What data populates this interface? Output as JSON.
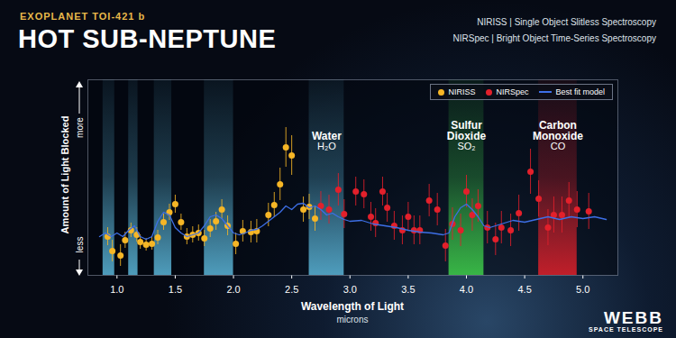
{
  "chart_data": {
    "type": "scatter",
    "subtitle": "EXOPLANET TOI-421 b",
    "title": "HOT SUB-NEPTUNE",
    "instruments": [
      "NIRISS | Single Object Slitless Spectroscopy",
      "NIRSpec | Bright Object Time-Series Spectroscopy"
    ],
    "x_label": "Wavelength of Light",
    "x_unit": "microns",
    "y_label": "Amount of Light Blocked",
    "y_top": "more",
    "y_bottom": "less",
    "xlim": [
      0.75,
      5.3
    ],
    "xticks": [
      {
        "value": 1,
        "label": "1.0"
      },
      {
        "value": 1.5,
        "label": "1.5"
      },
      {
        "value": 2,
        "label": "2.0"
      },
      {
        "value": 2.5,
        "label": "2.5"
      },
      {
        "value": 3,
        "label": "3.0"
      },
      {
        "value": 3.5,
        "label": "3.5"
      },
      {
        "value": 4,
        "label": "4.0"
      },
      {
        "value": 4.5,
        "label": "4.5"
      },
      {
        "value": 5,
        "label": "5.0"
      }
    ],
    "ylim": [
      0,
      217
    ],
    "tick_labels": "x",
    "legend": "top-right",
    "series": [
      {
        "name": "NIRISS",
        "color": "#f6b626",
        "type": "scatter",
        "marker": "circle",
        "x": [
          0.92,
          0.96,
          1.03,
          1.07,
          1.12,
          1.17,
          1.2,
          1.25,
          1.3,
          1.35,
          1.4,
          1.45,
          1.5,
          1.55,
          1.6,
          1.65,
          1.7,
          1.75,
          1.8,
          1.85,
          1.9,
          1.95,
          2.02,
          2.08,
          2.15,
          2.2,
          2.3,
          2.35,
          2.4,
          2.45,
          2.5,
          2.6,
          2.65,
          2.7
        ],
        "values": [
          43,
          27,
          22,
          39,
          50,
          45,
          37,
          34,
          35,
          42,
          59,
          70,
          79,
          59,
          43,
          45,
          47,
          41,
          52,
          60,
          73,
          55,
          35,
          49,
          48,
          49,
          67,
          78,
          101,
          142,
          133,
          73,
          76,
          63
        ],
        "errors": [
          10,
          12,
          12,
          9,
          8,
          8,
          8,
          7,
          7,
          8,
          9,
          9,
          10,
          9,
          9,
          9,
          9,
          9,
          10,
          10,
          11,
          11,
          12,
          12,
          12,
          13,
          13,
          14,
          18,
          22,
          22,
          14,
          14,
          14
        ]
      },
      {
        "name": "NIRSpec",
        "color": "#e3202b",
        "type": "scatter",
        "marker": "circle",
        "x": [
          2.75,
          2.82,
          2.9,
          2.95,
          3.05,
          3.12,
          3.18,
          3.22,
          3.28,
          3.32,
          3.38,
          3.45,
          3.5,
          3.55,
          3.6,
          3.68,
          3.75,
          3.82,
          3.88,
          3.95,
          4.0,
          4.05,
          4.1,
          4.18,
          4.25,
          4.3,
          4.38,
          4.45,
          4.55,
          4.62,
          4.7,
          4.75,
          4.82,
          4.88,
          4.95,
          5.05
        ],
        "values": [
          77,
          73,
          95,
          68,
          93,
          90,
          65,
          58,
          93,
          75,
          55,
          50,
          65,
          50,
          50,
          83,
          73,
          33,
          57,
          50,
          93,
          67,
          77,
          53,
          40,
          53,
          50,
          69,
          115,
          85,
          53,
          67,
          67,
          83,
          73,
          71
        ],
        "errors": [
          16,
          16,
          18,
          16,
          16,
          16,
          16,
          16,
          16,
          16,
          16,
          16,
          16,
          16,
          16,
          18,
          18,
          18,
          18,
          18,
          18,
          18,
          18,
          18,
          18,
          18,
          18,
          20,
          25,
          20,
          20,
          20,
          20,
          20,
          20,
          20
        ]
      },
      {
        "name": "Best fit model",
        "color": "#3d6fe6",
        "type": "line",
        "line_style": "solid",
        "x": [
          0.85,
          0.9,
          0.95,
          1,
          1.05,
          1.1,
          1.15,
          1.2,
          1.25,
          1.3,
          1.35,
          1.4,
          1.45,
          1.5,
          1.55,
          1.6,
          1.65,
          1.7,
          1.75,
          1.8,
          1.85,
          1.9,
          1.95,
          2,
          2.05,
          2.1,
          2.15,
          2.2,
          2.25,
          2.3,
          2.35,
          2.4,
          2.45,
          2.5,
          2.55,
          2.6,
          2.65,
          2.7,
          2.75,
          2.8,
          2.85,
          2.9,
          2.95,
          3,
          3.1,
          3.2,
          3.3,
          3.4,
          3.5,
          3.6,
          3.7,
          3.8,
          3.85,
          3.9,
          3.95,
          4.0,
          4.05,
          4.1,
          4.15,
          4.2,
          4.3,
          4.4,
          4.5,
          4.6,
          4.7,
          4.8,
          4.9,
          5.0,
          5.1,
          5.2
        ],
        "values": [
          43,
          47,
          43,
          47,
          43,
          50,
          55,
          43,
          40,
          43,
          60,
          70,
          67,
          53,
          47,
          43,
          45,
          47,
          55,
          65,
          67,
          63,
          55,
          47,
          45,
          47,
          50,
          51,
          55,
          60,
          65,
          70,
          77,
          73,
          79,
          80,
          75,
          77,
          73,
          67,
          69,
          65,
          62,
          60,
          61,
          57,
          55,
          53,
          50,
          48,
          47,
          45,
          47,
          65,
          75,
          79,
          73,
          65,
          55,
          53,
          57,
          61,
          59,
          62,
          65,
          62,
          65,
          63,
          65,
          62
        ]
      }
    ],
    "bands": [
      {
        "name": "Water",
        "formula": "H₂O",
        "color": "#5bb6d9",
        "ranges": [
          [
            0.88,
            0.98
          ],
          [
            1.1,
            1.18
          ],
          [
            1.32,
            1.47
          ],
          [
            1.75,
            2.0
          ],
          [
            2.65,
            2.95
          ]
        ]
      },
      {
        "name": "Sulfur Dioxide",
        "formula": "SO₂",
        "color": "#3fd04a",
        "ranges": [
          [
            3.85,
            4.15
          ]
        ]
      },
      {
        "name": "Carbon Monoxide",
        "formula": "CO",
        "color": "#e0202a",
        "ranges": [
          [
            4.62,
            4.95
          ]
        ]
      }
    ],
    "logo": {
      "line1": "WEBB",
      "line2": "SPACE TELESCOPE"
    }
  }
}
